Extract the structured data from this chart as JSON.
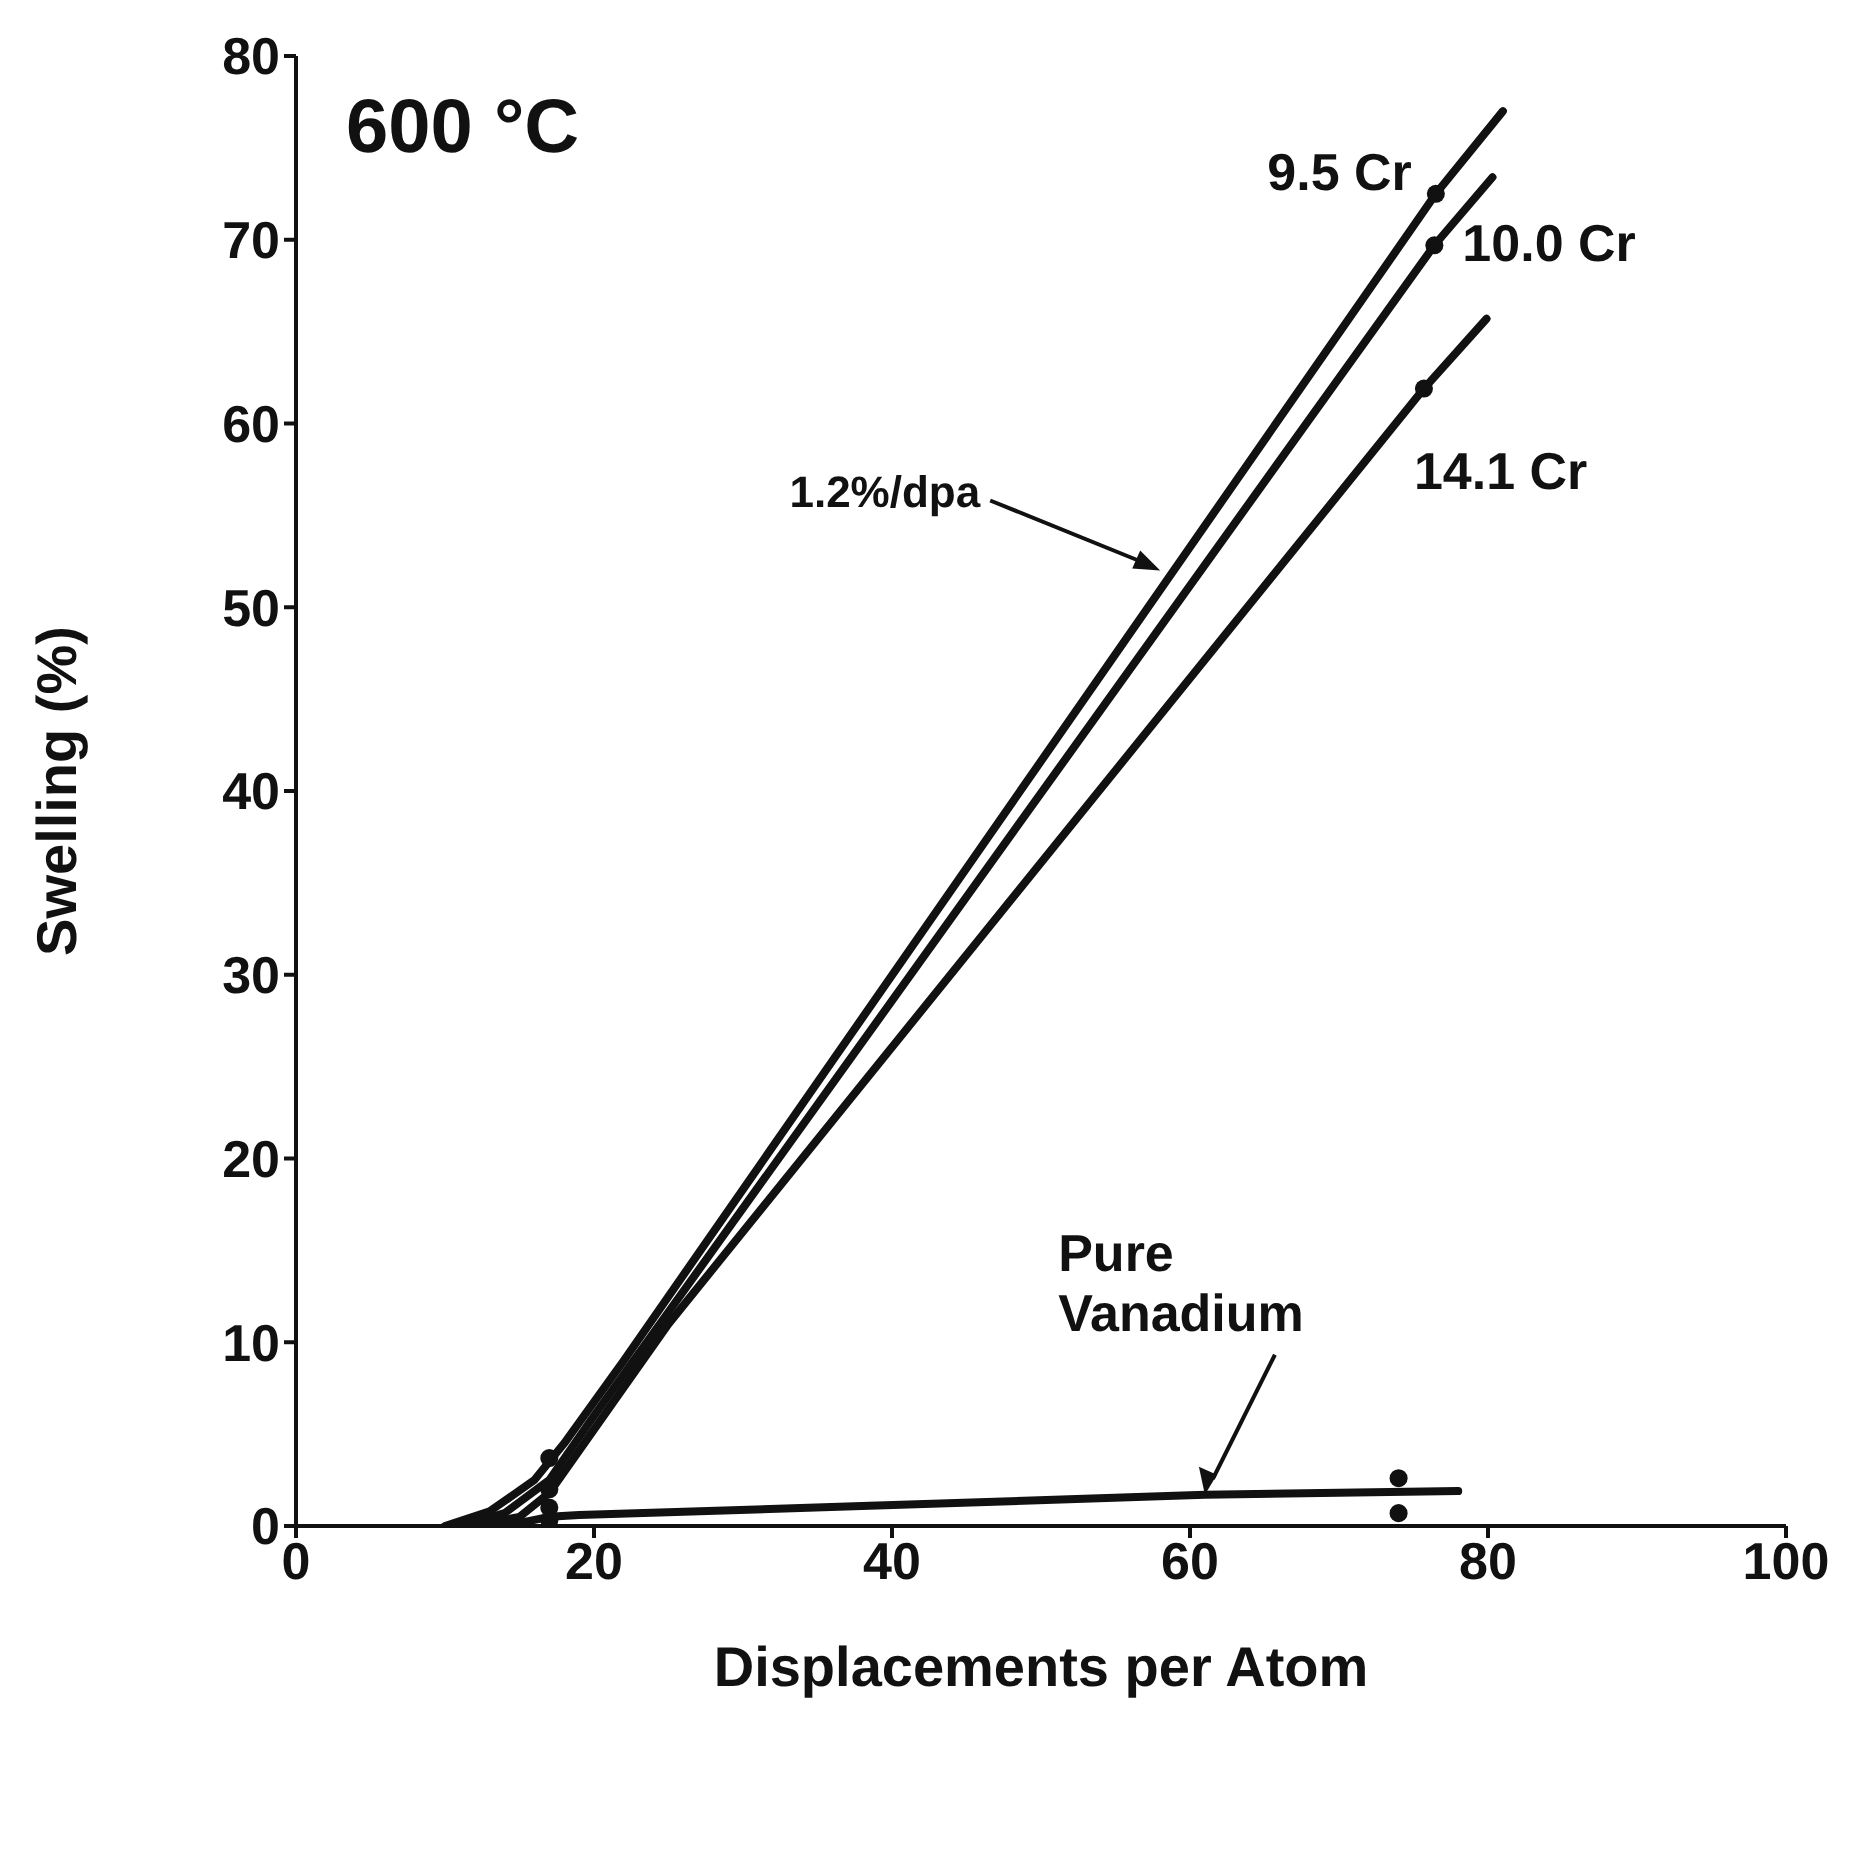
{
  "chart_data": {
    "type": "line",
    "xlabel": "Displacements per Atom",
    "ylabel": "Swelling (%)",
    "xlim": [
      0,
      100
    ],
    "xticks": [
      0,
      20,
      40,
      60,
      80,
      100
    ],
    "ylim": [
      0,
      80
    ],
    "yticks": [
      0,
      10,
      20,
      30,
      40,
      50,
      60,
      70,
      80
    ],
    "grid": false,
    "legend": false,
    "marker": "none",
    "line_style": "solid",
    "annotations": [
      "600 °C",
      {
        "text": "1.2%/dpa",
        "x": 58,
        "y": 52
      }
    ],
    "series": [
      {
        "name": "9.5 Cr",
        "color": "#111111",
        "x": [
          10,
          13,
          16,
          18,
          22,
          76.5,
          81
        ],
        "values": [
          0,
          0.8,
          2.5,
          4.5,
          9,
          72.5,
          77
        ]
      },
      {
        "name": "10.0 Cr",
        "color": "#111111",
        "x": [
          11,
          14,
          17,
          20,
          76.4,
          80.3
        ],
        "values": [
          0,
          0.7,
          2.5,
          6,
          69.7,
          73.4
        ]
      },
      {
        "name": "14.1 Cr",
        "color": "#111111",
        "x": [
          12,
          15,
          17,
          21,
          25,
          75.7,
          79.9
        ],
        "values": [
          0,
          0.5,
          1.8,
          6.4,
          11,
          61.9,
          65.7
        ]
      },
      {
        "name": "Pure Vanadium",
        "color": "#111111",
        "x": [
          14,
          17,
          19,
          38.5,
          61,
          78
        ],
        "values": [
          0,
          0.5,
          0.6,
          1.1,
          1.7,
          1.9
        ]
      },
      {
        "type": "scatter",
        "marker": "circle",
        "color": "#111111",
        "x": [
          17,
          17,
          17,
          17,
          76.5,
          76.4,
          75.7,
          74,
          74
        ],
        "values": [
          3.7,
          2,
          1,
          0.3,
          72.5,
          69.7,
          61.9,
          2.6,
          0.7
        ]
      }
    ]
  }
}
